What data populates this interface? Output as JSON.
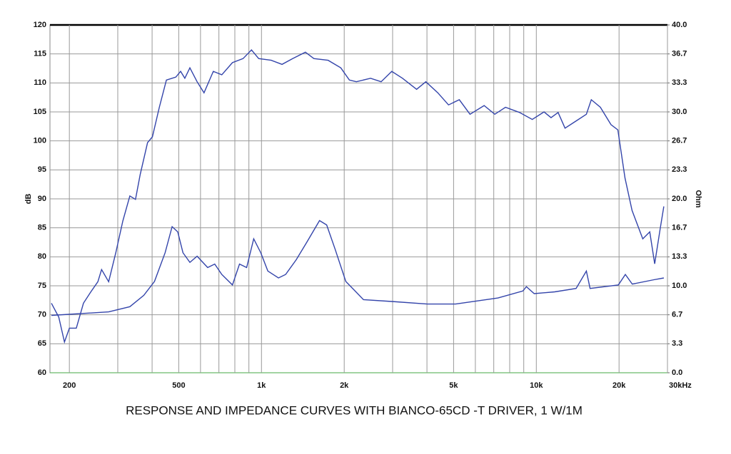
{
  "chart_data": {
    "type": "line",
    "title": "RESPONSE AND IMPEDANCE CURVES WITH BIANCO-65CD -T DRIVER, 1 W/1M",
    "ylabel": "dB",
    "y2label": "Ohm",
    "xscale": "log",
    "grid": true,
    "xlim": [
      170,
      30000
    ],
    "xticks": [
      200,
      500,
      {
        "value": 1000,
        "label": "1k"
      },
      {
        "value": 2000,
        "label": "2k"
      },
      {
        "value": 5000,
        "label": "5k"
      },
      {
        "value": 10000,
        "label": "10k"
      },
      {
        "value": 20000,
        "label": "20k"
      },
      {
        "value": 30000,
        "label": "30kHz"
      }
    ],
    "xminor": [
      300,
      400,
      600,
      700,
      800,
      900,
      3000,
      4000,
      6000,
      7000,
      8000,
      9000
    ],
    "ylim": [
      60,
      120
    ],
    "yticks": [
      60,
      65,
      70,
      75,
      80,
      85,
      90,
      95,
      100,
      105,
      110,
      115,
      120
    ],
    "y2lim": [
      0,
      40
    ],
    "y2ticks": [
      {
        "value": 0,
        "label": "0.0"
      },
      {
        "value": 3.333,
        "label": "3.3"
      },
      {
        "value": 6.667,
        "label": "6.7"
      },
      {
        "value": 10,
        "label": "10.0"
      },
      {
        "value": 13.333,
        "label": "13.3"
      },
      {
        "value": 16.667,
        "label": "16.7"
      },
      {
        "value": 20,
        "label": "20.0"
      },
      {
        "value": 23.333,
        "label": "23.3"
      },
      {
        "value": 26.667,
        "label": "26.7"
      },
      {
        "value": 30,
        "label": "30.0"
      },
      {
        "value": 33.333,
        "label": "33.3"
      },
      {
        "value": 36.667,
        "label": "36.7"
      },
      {
        "value": 40,
        "label": "40.0"
      }
    ],
    "series": [
      {
        "color": "#3344aa",
        "x": [
          172,
          183,
          192,
          200,
          212,
          225,
          239,
          254,
          262,
          278,
          295,
          313,
          332,
          348,
          362,
          385,
          401,
          425,
          451,
          488,
          508,
          526,
          549,
          583,
          618,
          668,
          717,
          784,
          857,
          920,
          977,
          1086,
          1188,
          1298,
          1445,
          1551,
          1747,
          1944,
          2088,
          2214,
          2494,
          2725,
          2979,
          3258,
          3667,
          3961,
          4381,
          4793,
          5245,
          5738,
          6457,
          7060,
          7723,
          8690,
          9664,
          10670,
          11310,
          12000,
          12720,
          13920,
          15210,
          15850,
          17100,
          18690,
          19800,
          21020,
          22300,
          24390,
          25870,
          26960,
          28260,
          29100
        ],
        "values": [
          72,
          69.6,
          65.3,
          67.7,
          67.7,
          72,
          73.9,
          75.7,
          77.8,
          75.7,
          80.7,
          86.2,
          90.5,
          89.9,
          94.2,
          99.7,
          100.7,
          105.8,
          110.5,
          111,
          112,
          110.8,
          112.6,
          110.2,
          108.3,
          112,
          111.4,
          113.5,
          114.2,
          115.7,
          114.2,
          113.9,
          113.2,
          114.2,
          115.3,
          114.2,
          113.9,
          112.6,
          110.5,
          110.2,
          110.8,
          110.2,
          112,
          110.8,
          108.9,
          110.2,
          108.3,
          106.2,
          107.1,
          104.6,
          106.1,
          104.6,
          105.8,
          104.9,
          103.7,
          105,
          104,
          104.9,
          102.2,
          103.4,
          104.6,
          107.1,
          105.8,
          102.8,
          101.9,
          93.6,
          88,
          83.1,
          84.3,
          78.8,
          85,
          88.7
        ]
      },
      {
        "color": "#3344aa",
        "axis": "y2",
        "x": [
          172,
          278,
          332,
          373,
          408,
          446,
          473,
          496,
          518,
          549,
          583,
          637,
          676,
          717,
          784,
          832,
          883,
          937,
          994,
          1055,
          1153,
          1224,
          1338,
          1461,
          1626,
          1727,
          1854,
          2027,
          2351,
          2979,
          4008,
          5085,
          7254,
          8930,
          9204,
          9820,
          11660,
          13950,
          15210,
          15690,
          19880,
          21080,
          22340,
          26780,
          29100
        ],
        "values": [
          6.6,
          7,
          7.6,
          8.9,
          10.5,
          13.8,
          16.8,
          16.2,
          13.8,
          12.7,
          13.4,
          12.1,
          12.5,
          11.3,
          10.1,
          12.5,
          12.1,
          15.4,
          13.8,
          11.7,
          10.9,
          11.3,
          13,
          15,
          17.5,
          17,
          14.2,
          10.5,
          8.4,
          8.2,
          7.9,
          7.9,
          8.6,
          9.4,
          9.9,
          9.1,
          9.3,
          9.7,
          11.7,
          9.7,
          10.1,
          11.3,
          10.2,
          10.7,
          10.9
        ]
      }
    ]
  }
}
